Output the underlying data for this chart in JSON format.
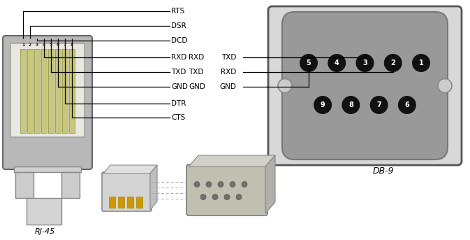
{
  "bg_color": "#ffffff",
  "rj45_pin_labels": [
    "RTS",
    "DSR",
    "DCD",
    "RXD",
    "TXD",
    "GND",
    "DTR",
    "CTS"
  ],
  "rj45_pin_numbers": [
    "1",
    "2",
    "3",
    "4",
    "5",
    "6",
    "7",
    "8"
  ],
  "mid_labels_left": [
    "RXD",
    "TXD",
    "GND"
  ],
  "mid_labels_right": [
    "TXD",
    "RXD",
    "GND"
  ],
  "db9_top_pins": [
    "5",
    "4",
    "3",
    "2",
    "1"
  ],
  "db9_bot_pins": [
    "9",
    "8",
    "7",
    "6"
  ],
  "db9_label": "DB-9",
  "rj45_label": "RJ-45",
  "rj45_body_color": "#b8b8b8",
  "rj45_inner_color": "#e8e8e0",
  "rj45_pin_color": "#c8c87a",
  "rj45_tab_color": "#cccccc",
  "db9_outer_color": "#d8d8d8",
  "db9_inner_color": "#999999",
  "db9_pin_color": "#111111",
  "db9_pin_text": "#ffffff",
  "db9_hole_color": "#cccccc",
  "small_rj_color": "#d0d0d0",
  "small_rj_gold": "#cc9900",
  "small_db_color": "#c0c0b0",
  "small_db_pin_color": "#888888"
}
